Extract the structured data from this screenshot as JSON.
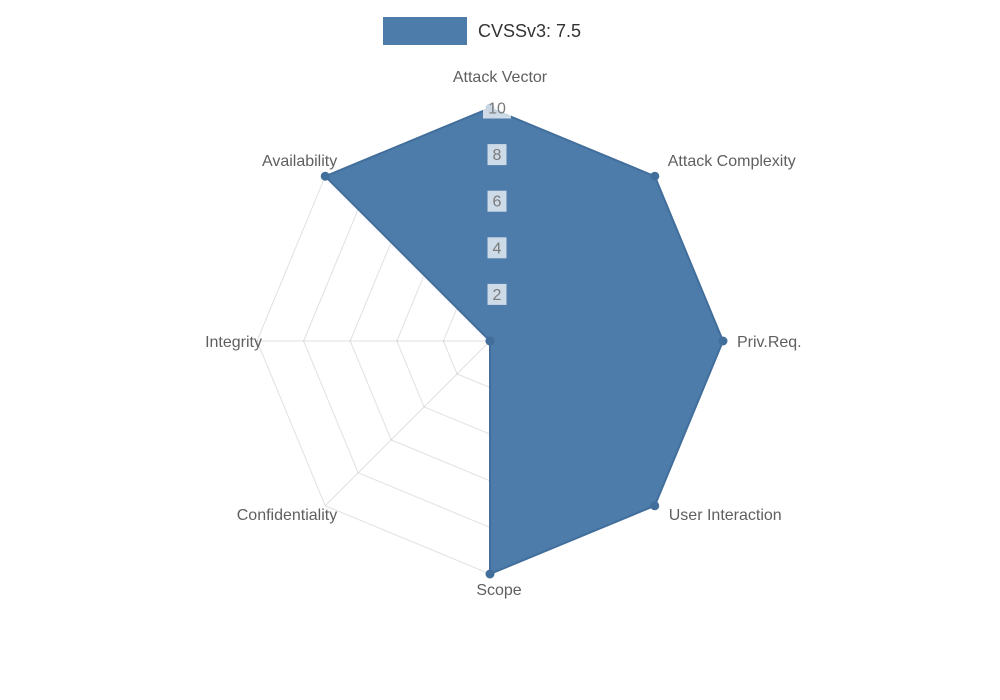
{
  "legend": {
    "label": "CVSSv3: 7.5"
  },
  "chart_data": {
    "type": "radar",
    "title": "CVSSv3: 7.5",
    "categories": [
      "Attack Vector",
      "Attack Complexity",
      "Priv.Req.",
      "User Interaction",
      "Scope",
      "Confidentiality",
      "Integrity",
      "Availability"
    ],
    "series": [
      {
        "name": "CVSSv3: 7.5",
        "values": [
          10,
          10,
          10,
          10,
          10,
          0,
          0,
          10
        ]
      }
    ],
    "scale": {
      "min": 0,
      "max": 10,
      "ticks": [
        2,
        4,
        6,
        8,
        10
      ]
    },
    "legend_position": "top",
    "grid": true
  },
  "colors": {
    "series_fill": "#4d7caa",
    "series_stroke": "#426e9b",
    "point": "#426e9b",
    "grid_line": "rgba(0,0,0,0.12)",
    "tick_text": "#7a7a7a",
    "tick_backdrop": "rgba(255,255,255,0.72)",
    "axis_label": "#5f5f5f",
    "legend_text": "#333333",
    "background": "#ffffff"
  }
}
